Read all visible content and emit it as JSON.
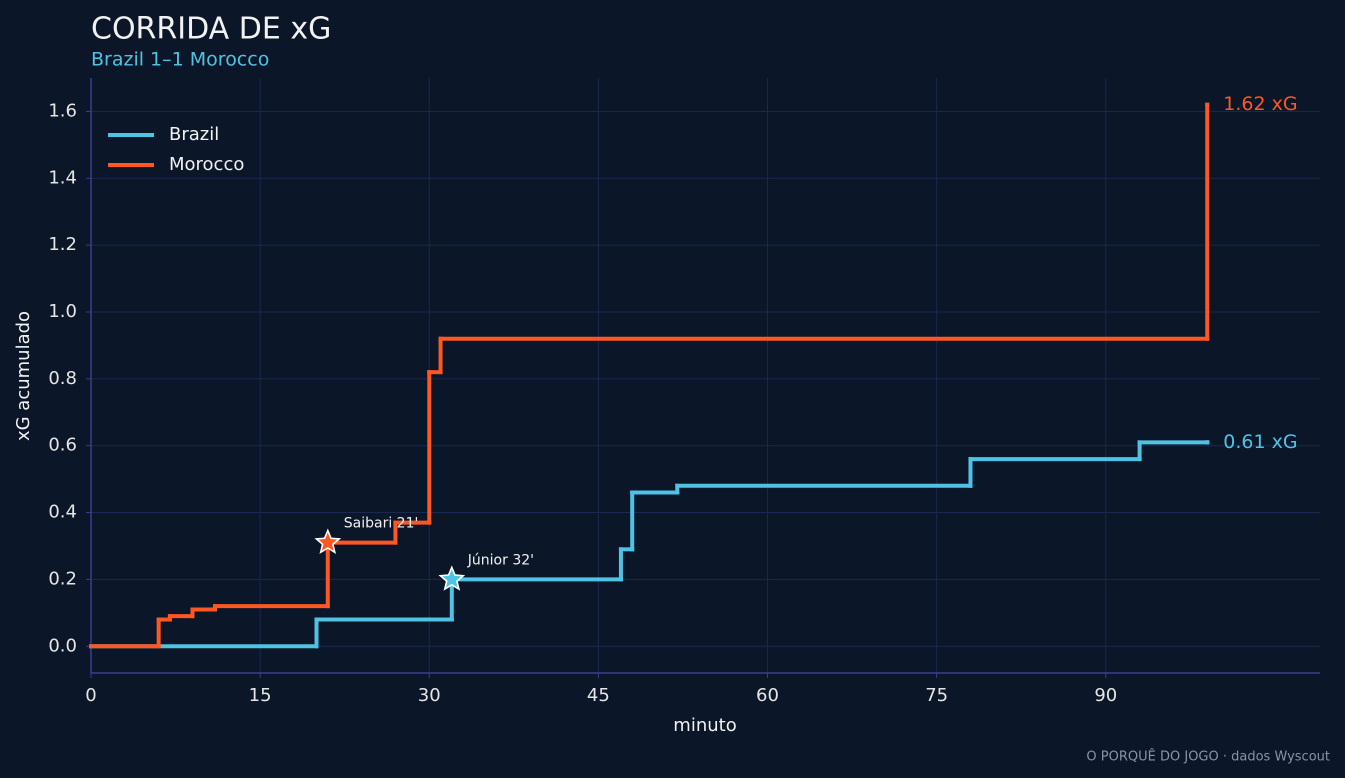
{
  "chart_data": {
    "type": "step",
    "title": "CORRIDA DE xG",
    "subtitle": "Brazil 1–1 Morocco",
    "xlabel": "minuto",
    "ylabel": "xG acumulado",
    "footer": "O PORQUÊ DO JOGO · dados Wyscout",
    "xlim": [
      0,
      109
    ],
    "ylim": [
      -0.08,
      1.7
    ],
    "xticks": [
      0,
      15,
      30,
      45,
      60,
      75,
      90
    ],
    "yticks": [
      {
        "value": 0,
        "label": "0.0"
      },
      0.2,
      0.4,
      0.6,
      0.8,
      {
        "value": 1,
        "label": "1.0"
      },
      1.2,
      1.4,
      1.6
    ],
    "grid": true,
    "legend": "upper left",
    "series": [
      {
        "name": "Brazil",
        "color": "#4fc3e3",
        "x": [
          0,
          20,
          32,
          47,
          48,
          52,
          78,
          93,
          99
        ],
        "values": [
          0,
          0.08,
          0.2,
          0.29,
          0.46,
          0.48,
          0.56,
          0.61,
          0.61
        ],
        "value_labels": [
          null,
          null,
          null,
          null,
          null,
          null,
          null,
          null,
          "0.61 xG"
        ]
      },
      {
        "name": "Morocco",
        "color": "#ff5722",
        "x": [
          0,
          6,
          7,
          9,
          11,
          21,
          27,
          30,
          31,
          99
        ],
        "values": [
          0,
          0.08,
          0.09,
          0.11,
          0.12,
          0.31,
          0.37,
          0.82,
          0.92,
          1.62
        ],
        "value_labels": [
          null,
          null,
          null,
          null,
          null,
          null,
          null,
          null,
          null,
          "1.62 xG"
        ]
      }
    ],
    "annotations": [
      {
        "text": "Saibari 21'",
        "x": 21,
        "y": 0.31,
        "color": "#ff5722"
      },
      {
        "text": "Júnior 32'",
        "x": 32,
        "y": 0.2,
        "color": "#4fc3e3"
      }
    ]
  }
}
